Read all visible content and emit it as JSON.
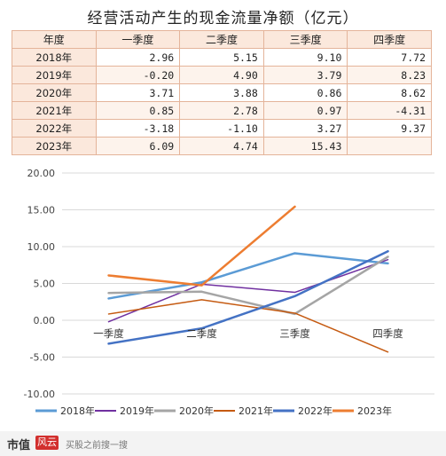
{
  "title": "经营活动产生的现金流量净额（亿元）",
  "table": {
    "headers": [
      "年度",
      "一季度",
      "二季度",
      "三季度",
      "四季度"
    ],
    "rows": [
      {
        "year": "2018年",
        "q": [
          "2.96",
          "5.15",
          "9.10",
          "7.72"
        ]
      },
      {
        "year": "2019年",
        "q": [
          "-0.20",
          "4.90",
          "3.79",
          "8.23"
        ]
      },
      {
        "year": "2020年",
        "q": [
          "3.71",
          "3.88",
          "0.86",
          "8.62"
        ]
      },
      {
        "year": "2021年",
        "q": [
          "0.85",
          "2.78",
          "0.97",
          "-4.31"
        ]
      },
      {
        "year": "2022年",
        "q": [
          "-3.18",
          "-1.10",
          "3.27",
          "9.37"
        ]
      },
      {
        "year": "2023年",
        "q": [
          "6.09",
          "4.74",
          "15.43",
          ""
        ]
      }
    ]
  },
  "chart_data": {
    "type": "line",
    "categories": [
      "一季度",
      "二季度",
      "三季度",
      "四季度"
    ],
    "ylim": [
      -10,
      20
    ],
    "yticks": [
      "20.00",
      "15.00",
      "10.00",
      "5.00",
      "0.00",
      "-5.00",
      "-10.00"
    ],
    "ytick_values": [
      20,
      15,
      10,
      5,
      0,
      -5,
      -10
    ],
    "grid": true,
    "legend_position": "bottom",
    "series": [
      {
        "name": "2018年",
        "color": "#5b9bd5",
        "width": 2.5,
        "values": [
          2.96,
          5.15,
          9.1,
          7.72
        ]
      },
      {
        "name": "2019年",
        "color": "#7030a0",
        "width": 1.5,
        "values": [
          -0.2,
          4.9,
          3.79,
          8.23
        ]
      },
      {
        "name": "2020年",
        "color": "#a5a5a5",
        "width": 2.5,
        "values": [
          3.71,
          3.88,
          0.86,
          8.62
        ]
      },
      {
        "name": "2021年",
        "color": "#c55a11",
        "width": 1.5,
        "values": [
          0.85,
          2.78,
          0.97,
          -4.31
        ]
      },
      {
        "name": "2022年",
        "color": "#4472c4",
        "width": 2.5,
        "values": [
          -3.18,
          -1.1,
          3.27,
          9.37
        ]
      },
      {
        "name": "2023年",
        "color": "#ed7d31",
        "width": 2.5,
        "values": [
          6.09,
          4.74,
          15.43,
          null
        ]
      }
    ]
  },
  "footer": {
    "brand": "市值",
    "badge": "风云",
    "text": "买股之前搜一搜"
  }
}
